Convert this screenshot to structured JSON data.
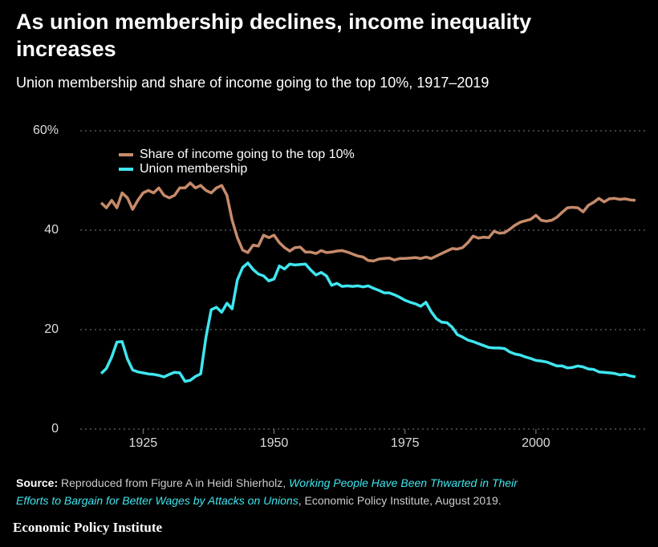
{
  "chart_data": {
    "type": "line",
    "title": [
      "As union membership declines, income inequality",
      "increases"
    ],
    "subtitle": "Union membership and share of income going to the top 10%, 1917–2019",
    "x": [
      1917,
      1918,
      1919,
      1920,
      1921,
      1922,
      1923,
      1924,
      1925,
      1926,
      1927,
      1928,
      1929,
      1930,
      1931,
      1932,
      1933,
      1934,
      1935,
      1936,
      1937,
      1938,
      1939,
      1940,
      1941,
      1942,
      1943,
      1944,
      1945,
      1946,
      1947,
      1948,
      1949,
      1950,
      1951,
      1952,
      1953,
      1954,
      1955,
      1956,
      1957,
      1958,
      1959,
      1960,
      1961,
      1962,
      1963,
      1964,
      1965,
      1966,
      1967,
      1968,
      1969,
      1970,
      1971,
      1972,
      1973,
      1974,
      1975,
      1976,
      1977,
      1978,
      1979,
      1980,
      1981,
      1982,
      1983,
      1984,
      1985,
      1986,
      1987,
      1988,
      1989,
      1990,
      1991,
      1992,
      1993,
      1994,
      1995,
      1996,
      1997,
      1998,
      1999,
      2000,
      2001,
      2002,
      2003,
      2004,
      2005,
      2006,
      2007,
      2008,
      2009,
      2010,
      2011,
      2012,
      2013,
      2014,
      2015,
      2016,
      2017,
      2018,
      2019
    ],
    "series": [
      {
        "name": "Share of income going to the top 10%",
        "color": "#c68b6b",
        "values": [
          45.5,
          44.5,
          46,
          44.5,
          47.5,
          46.5,
          44.2,
          46,
          47.5,
          48,
          47.5,
          48.5,
          47,
          46.5,
          47,
          48.5,
          48.5,
          49.5,
          48.5,
          49,
          48,
          47.5,
          48.5,
          49,
          47,
          42,
          38.5,
          36,
          35.5,
          37,
          36.8,
          39,
          38.5,
          39,
          37.5,
          36.5,
          35.8,
          36.5,
          36.6,
          35.6,
          35.6,
          35.3,
          35.9,
          35.5,
          35.6,
          35.8,
          35.9,
          35.6,
          35.2,
          34.8,
          34.6,
          33.9,
          33.8,
          34.2,
          34.3,
          34.4,
          34,
          34.3,
          34.3,
          34.4,
          34.5,
          34.3,
          34.6,
          34.3,
          34.8,
          35.3,
          35.8,
          36.3,
          36.2,
          36.5,
          37.5,
          38.8,
          38.4,
          38.6,
          38.5,
          39.8,
          39.4,
          39.5,
          40.2,
          41,
          41.6,
          41.9,
          42.2,
          43,
          42,
          41.8,
          42,
          42.6,
          43.6,
          44.5,
          44.6,
          44.5,
          43.7,
          45,
          45.6,
          46.4,
          45.7,
          46.3,
          46.4,
          46.2,
          46.3,
          46.1,
          46
        ]
      },
      {
        "name": "Union membership",
        "color": "#3fe6ef",
        "values": [
          11.2,
          12.2,
          14.5,
          17.5,
          17.6,
          14.1,
          11.9,
          11.5,
          11.3,
          11.1,
          11,
          10.8,
          10.5,
          11,
          11.4,
          11.3,
          9.6,
          9.8,
          10.6,
          11.1,
          18.5,
          24,
          24.5,
          23.5,
          25.3,
          24.2,
          30,
          32.5,
          33.4,
          32.1,
          31.2,
          30.8,
          29.8,
          30.2,
          32.8,
          32.2,
          33.2,
          33,
          33.1,
          33.2,
          32,
          31,
          31.5,
          30.8,
          28.9,
          29.3,
          28.7,
          28.8,
          28.7,
          28.8,
          28.6,
          28.8,
          28.3,
          27.9,
          27.4,
          27.4,
          27,
          26.5,
          25.9,
          25.5,
          25.2,
          24.7,
          25.5,
          23.6,
          22.2,
          21.5,
          21.4,
          20.5,
          19,
          18.5,
          17.9,
          17.6,
          17.2,
          16.8,
          16.4,
          16.3,
          16.3,
          16.2,
          15.5,
          15.1,
          14.9,
          14.5,
          14.2,
          13.8,
          13.7,
          13.5,
          13.1,
          12.7,
          12.7,
          12.3,
          12.4,
          12.7,
          12.5,
          12.1,
          12,
          11.5,
          11.4,
          11.3,
          11.2,
          10.9,
          11,
          10.7,
          10.5
        ]
      }
    ],
    "xlim": [
      1913,
      2021
    ],
    "xticks": [
      1925,
      1950,
      1975,
      2000
    ],
    "ylim": [
      0,
      60
    ],
    "yticks": [
      0,
      20,
      40,
      {
        "value": 60,
        "label": "60%"
      }
    ],
    "grid": true,
    "legend": "top-left",
    "source": {
      "label": "Source:",
      "text1": "Reproduced from Figure A in Heidi Shierholz,",
      "link1": "Working People Have Been Thwarted in Their",
      "link2": "Efforts to Bargain for Better Wages by Attacks on Unions",
      "text2": ", Economic Policy Institute, August 2019."
    },
    "brand": "Economic Policy Institute"
  }
}
